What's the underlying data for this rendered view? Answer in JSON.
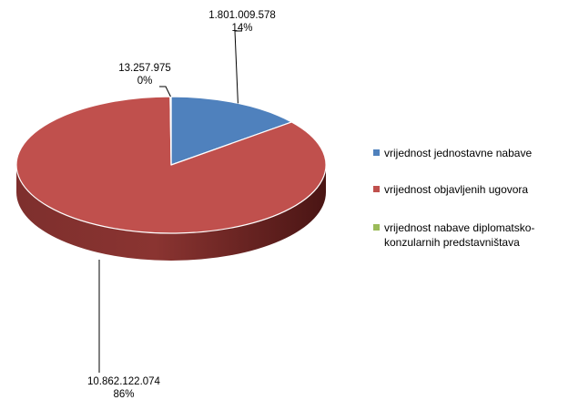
{
  "chart_data": {
    "type": "pie",
    "style": "3d",
    "slices": [
      {
        "name": "vrijednost jednostavne nabave",
        "value": 1801009578,
        "value_label": "1.801.009.578",
        "percent_label": "14%",
        "color": "#4f81bd"
      },
      {
        "name": "vrijednost objavljenih ugovora",
        "value": 10862122074,
        "value_label": "10.862.122.074",
        "percent_label": "86%",
        "color": "#c0504d"
      },
      {
        "name": "vrijednost nabave diplomatsko-konzularnih predstavništava",
        "value": 13257975,
        "value_label": "13.257.975",
        "percent_label": "0%",
        "color": "#9bbb59"
      }
    ],
    "legend_position": "right"
  }
}
